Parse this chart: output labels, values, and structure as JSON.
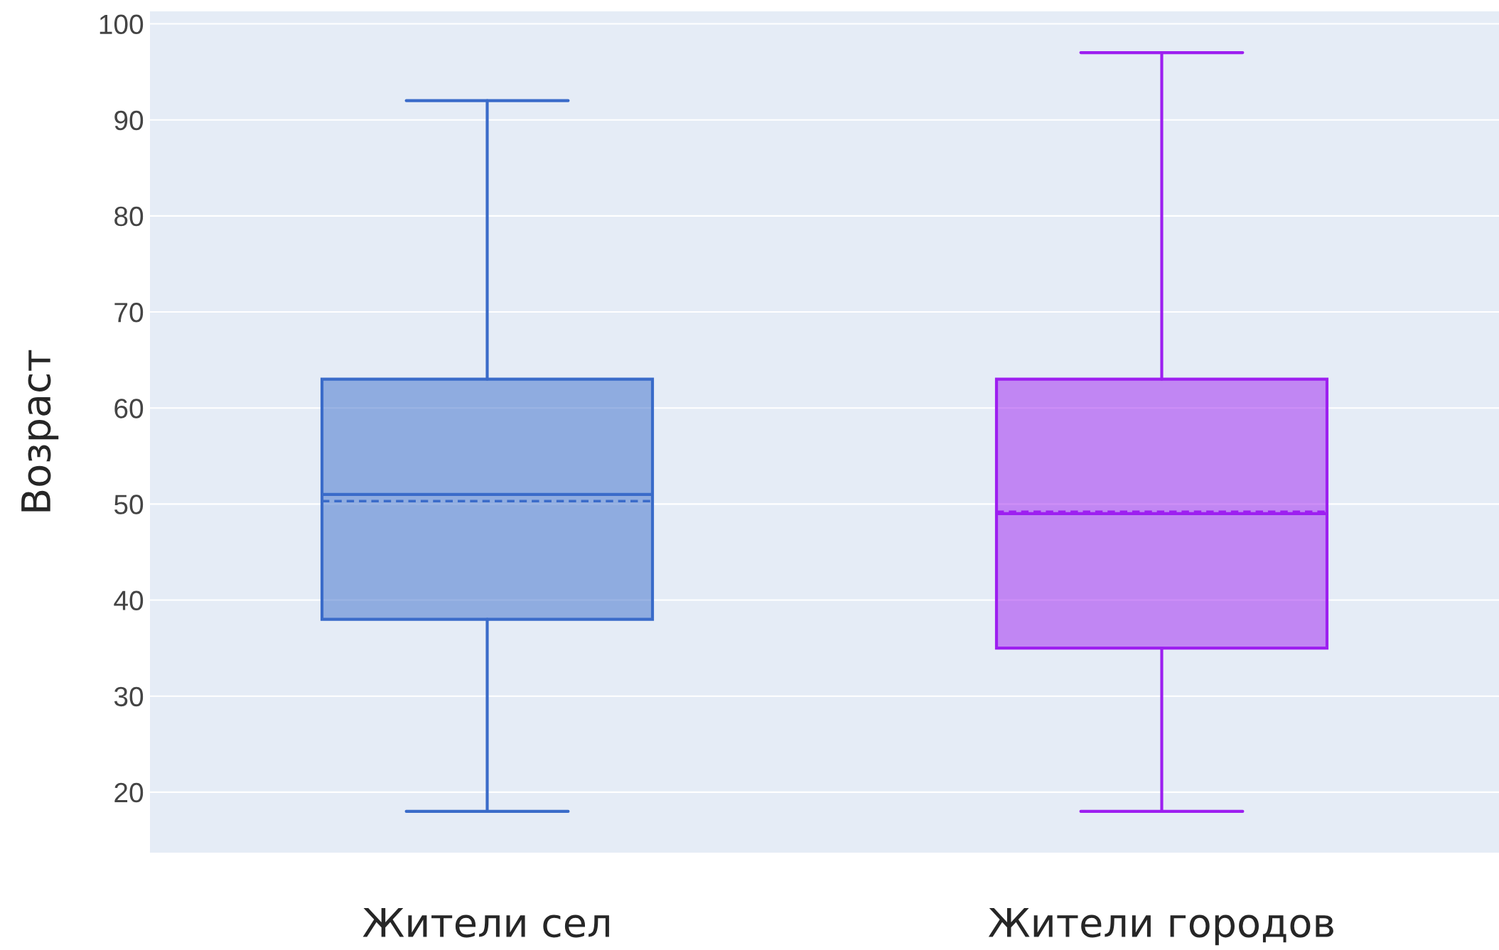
{
  "chart_data": {
    "type": "box",
    "ylabel": "Возраст",
    "categories": [
      "Жители сел",
      "Жители городов"
    ],
    "series": [
      {
        "color": "#3a6bc9",
        "boxes": [
          {
            "low": 18,
            "q1": 38,
            "median": 51,
            "q3": 63,
            "high": 92,
            "mean": 50.3
          },
          null
        ]
      },
      {
        "color": "#9d1ff0",
        "boxes": [
          null,
          {
            "low": 18,
            "q1": 35,
            "median": 49,
            "q3": 63,
            "high": 97,
            "mean": 49.2
          }
        ]
      }
    ],
    "ylim": [
      13.7,
      101.3
    ],
    "yticks": [
      20,
      30,
      40,
      50,
      60,
      70,
      80,
      90,
      100
    ],
    "grid": "y",
    "legend": false
  }
}
